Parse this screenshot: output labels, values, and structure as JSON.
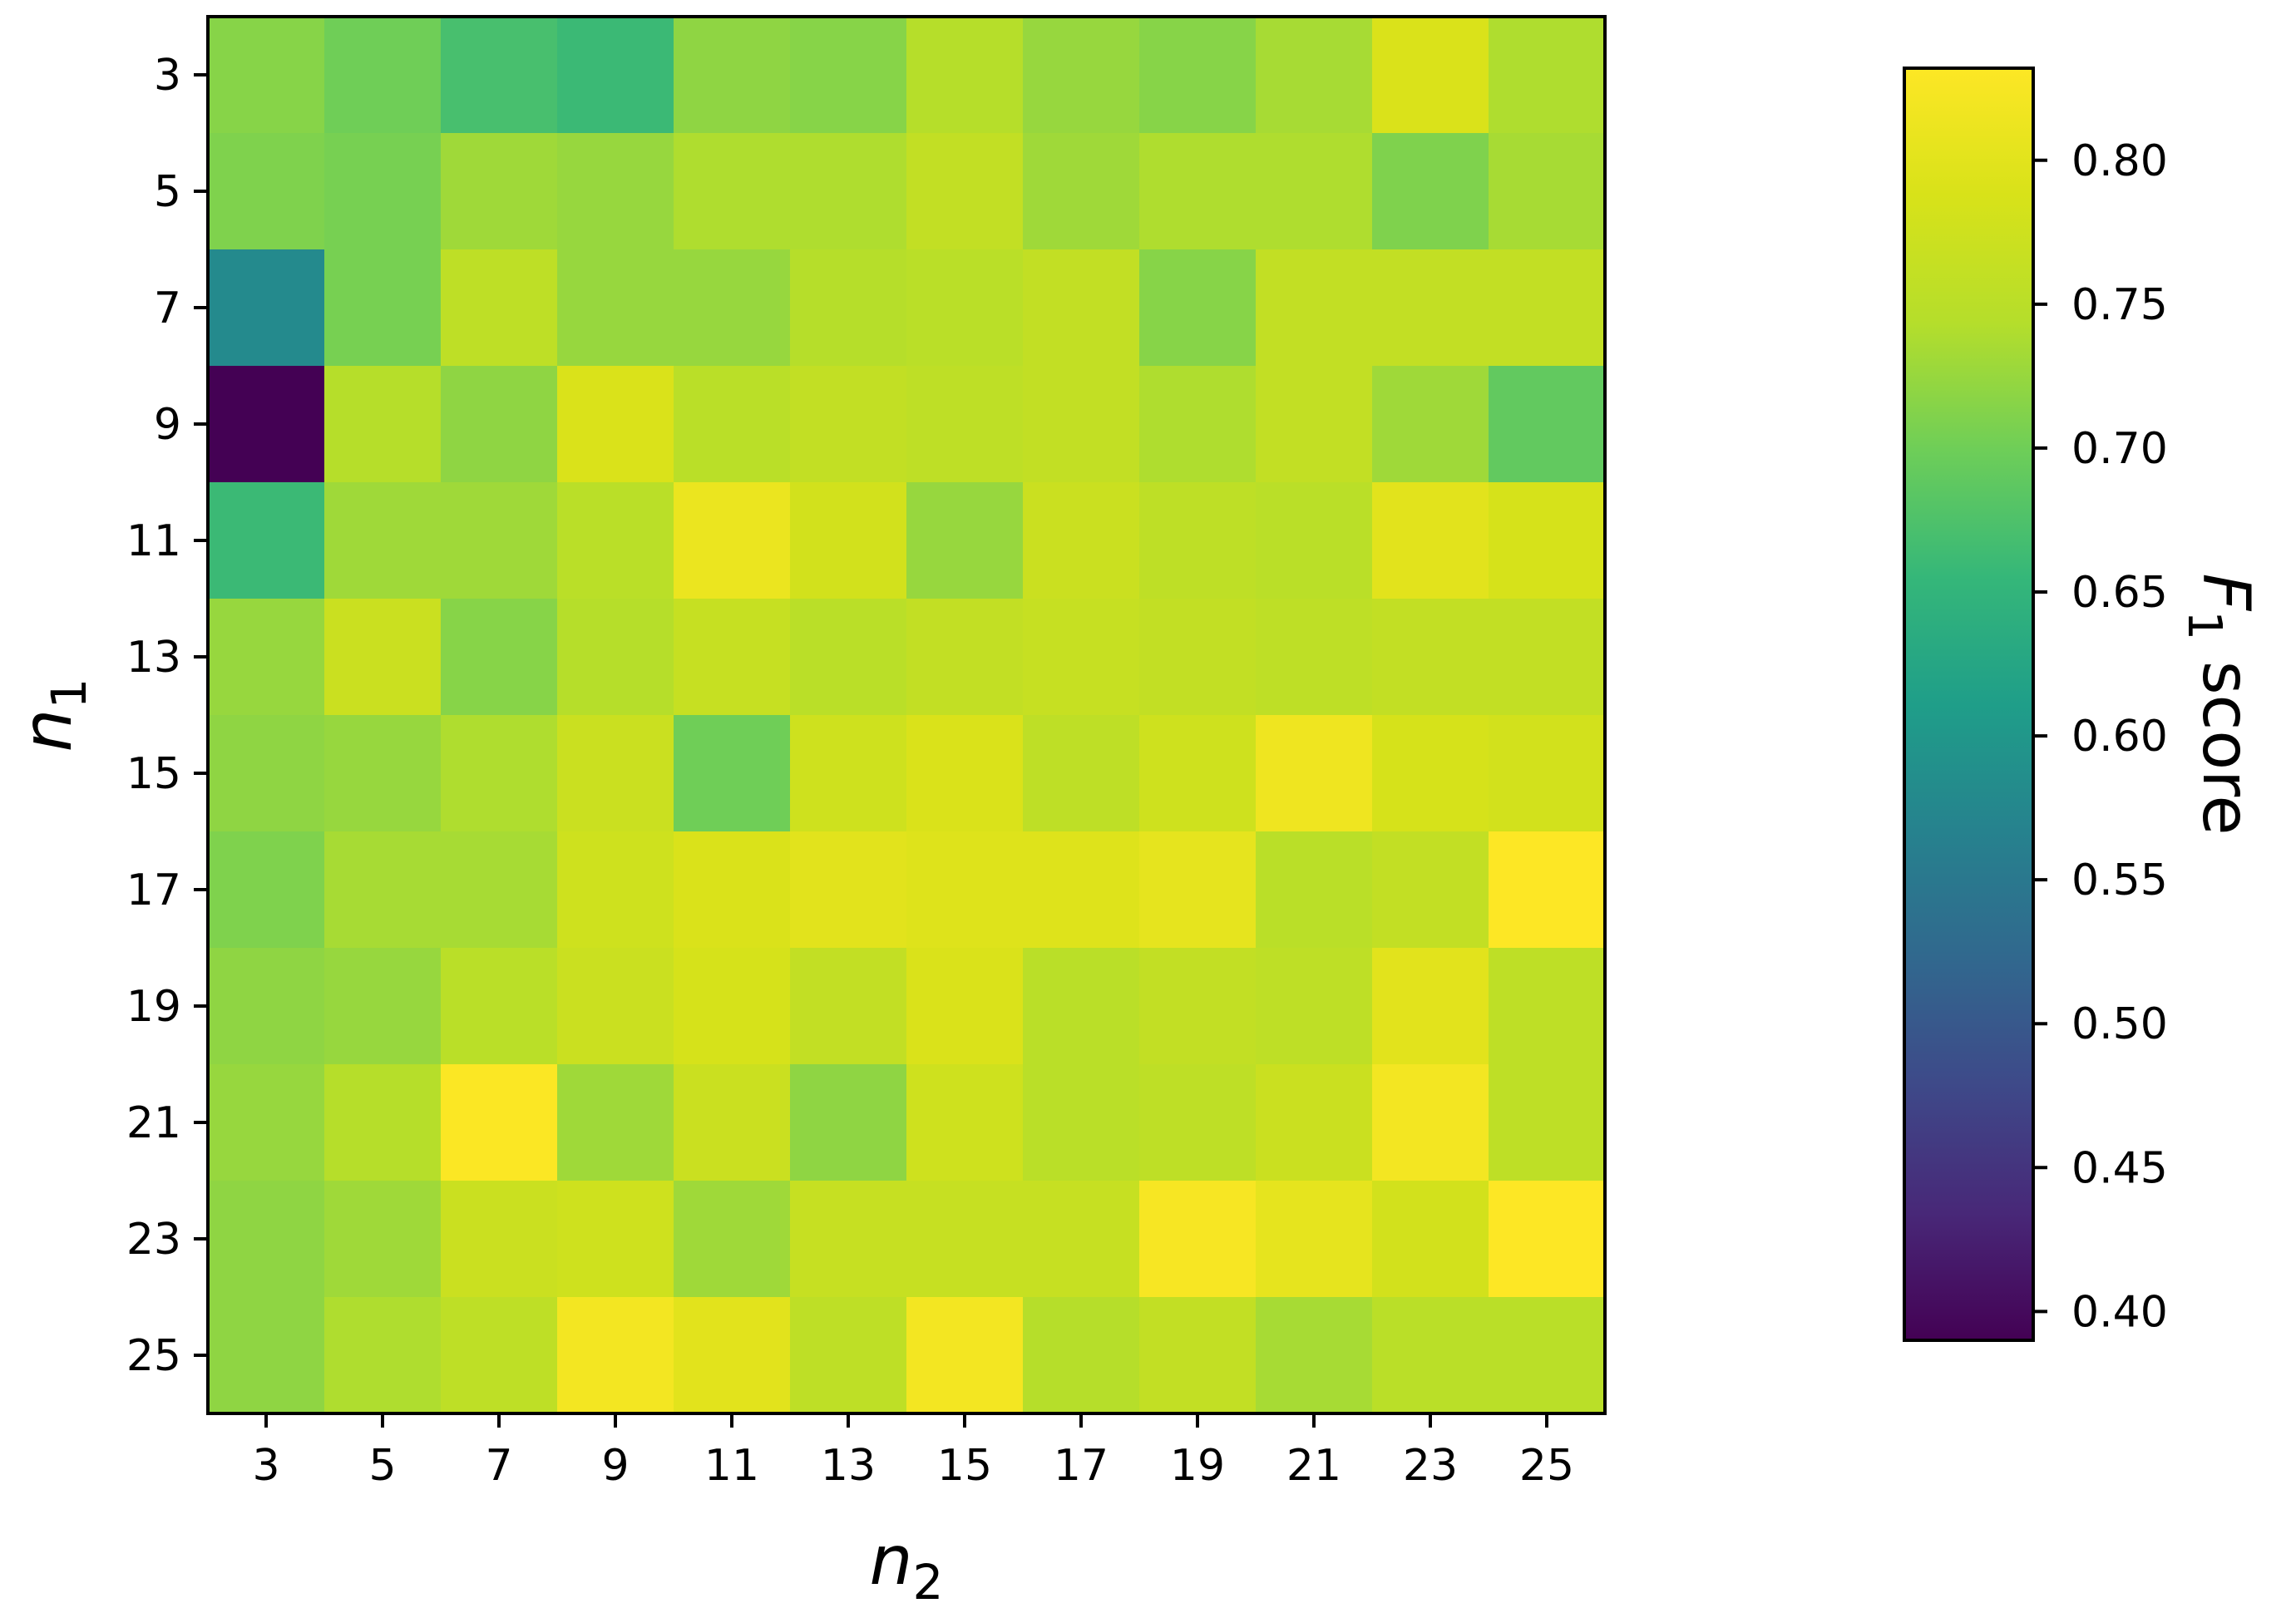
{
  "chart_data": {
    "type": "heatmap",
    "x_values": [
      3,
      5,
      7,
      9,
      11,
      13,
      15,
      17,
      19,
      21,
      23,
      25
    ],
    "y_values": [
      3,
      5,
      7,
      9,
      11,
      13,
      15,
      17,
      19,
      21,
      23,
      25
    ],
    "xlabel": {
      "base": "n",
      "sub": "2"
    },
    "ylabel": {
      "base": "n",
      "sub": "1"
    },
    "colorbar": {
      "label_base": "F",
      "label_sub": "1",
      "label_rest": " score",
      "min": 0.39,
      "max": 0.832,
      "ticks": [
        0.4,
        0.45,
        0.5,
        0.55,
        0.6,
        0.65,
        0.7,
        0.75,
        0.8
      ],
      "colormap": "viridis"
    },
    "values": [
      [
        0.715,
        0.7,
        0.67,
        0.66,
        0.72,
        0.715,
        0.745,
        0.725,
        0.715,
        0.735,
        0.79,
        0.74
      ],
      [
        0.71,
        0.705,
        0.73,
        0.725,
        0.74,
        0.74,
        0.76,
        0.73,
        0.74,
        0.74,
        0.71,
        0.735
      ],
      [
        0.58,
        0.705,
        0.755,
        0.725,
        0.725,
        0.745,
        0.75,
        0.76,
        0.715,
        0.76,
        0.76,
        0.76
      ],
      [
        0.39,
        0.745,
        0.72,
        0.79,
        0.75,
        0.76,
        0.755,
        0.76,
        0.74,
        0.76,
        0.73,
        0.69
      ],
      [
        0.66,
        0.73,
        0.73,
        0.75,
        0.81,
        0.78,
        0.725,
        0.77,
        0.755,
        0.75,
        0.8,
        0.785
      ],
      [
        0.725,
        0.77,
        0.715,
        0.745,
        0.765,
        0.75,
        0.76,
        0.765,
        0.76,
        0.755,
        0.76,
        0.76
      ],
      [
        0.72,
        0.725,
        0.74,
        0.77,
        0.7,
        0.775,
        0.79,
        0.755,
        0.775,
        0.815,
        0.785,
        0.78
      ],
      [
        0.71,
        0.735,
        0.735,
        0.775,
        0.79,
        0.8,
        0.795,
        0.795,
        0.805,
        0.75,
        0.76,
        0.832
      ],
      [
        0.72,
        0.725,
        0.75,
        0.77,
        0.785,
        0.76,
        0.79,
        0.75,
        0.76,
        0.755,
        0.8,
        0.755
      ],
      [
        0.725,
        0.745,
        0.83,
        0.73,
        0.77,
        0.72,
        0.775,
        0.75,
        0.755,
        0.77,
        0.82,
        0.755
      ],
      [
        0.72,
        0.73,
        0.77,
        0.775,
        0.73,
        0.765,
        0.765,
        0.765,
        0.825,
        0.805,
        0.78,
        0.832
      ],
      [
        0.72,
        0.74,
        0.755,
        0.82,
        0.8,
        0.755,
        0.82,
        0.745,
        0.76,
        0.735,
        0.75,
        0.75
      ]
    ]
  }
}
